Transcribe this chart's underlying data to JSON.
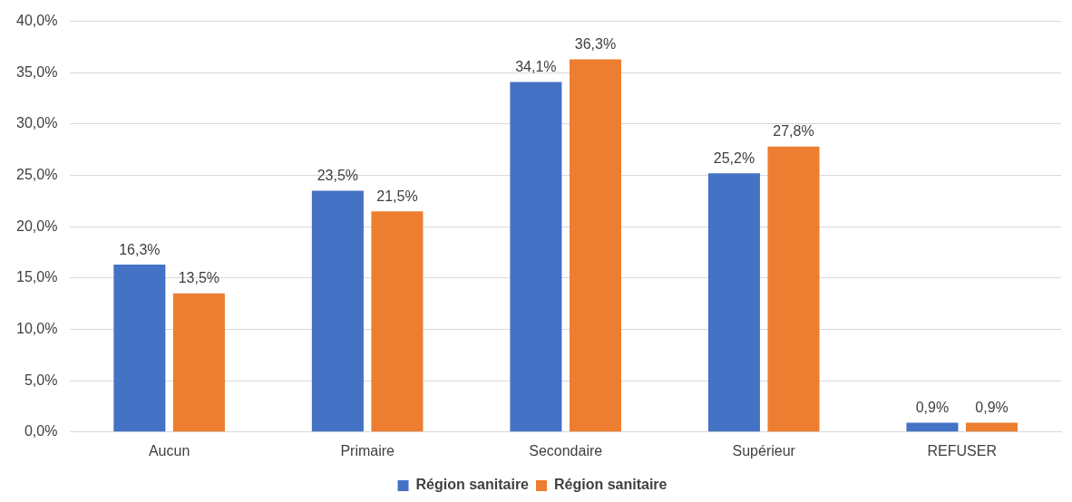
{
  "chart_data": {
    "type": "bar",
    "categories": [
      "Aucun",
      "Primaire",
      "Secondaire",
      "Supérieur",
      "REFUSER"
    ],
    "series": [
      {
        "name": "Région sanitaire",
        "color": "#4472c4",
        "values": [
          16.3,
          23.5,
          34.1,
          25.2,
          0.9
        ],
        "value_labels": [
          "16,3%",
          "23,5%",
          "34,1%",
          "25,2%",
          "0,9%"
        ]
      },
      {
        "name": "Région sanitaire",
        "color": "#ed7d31",
        "values": [
          13.5,
          21.5,
          36.3,
          27.8,
          0.9
        ],
        "value_labels": [
          "13,5%",
          "21,5%",
          "36,3%",
          "27,8%",
          "0,9%"
        ]
      }
    ],
    "ylim": [
      0,
      40
    ],
    "yticks": [
      {
        "value": 0,
        "label": "0,0%"
      },
      {
        "value": 5,
        "label": "5,0%"
      },
      {
        "value": 10,
        "label": "10,0%"
      },
      {
        "value": 15,
        "label": "15,0%"
      },
      {
        "value": 20,
        "label": "20,0%"
      },
      {
        "value": 25,
        "label": "25,0%"
      },
      {
        "value": 30,
        "label": "30,0%"
      },
      {
        "value": 35,
        "label": "35,0%"
      },
      {
        "value": 40,
        "label": "40,0%"
      }
    ],
    "grid": "y",
    "legend": "bottom"
  }
}
